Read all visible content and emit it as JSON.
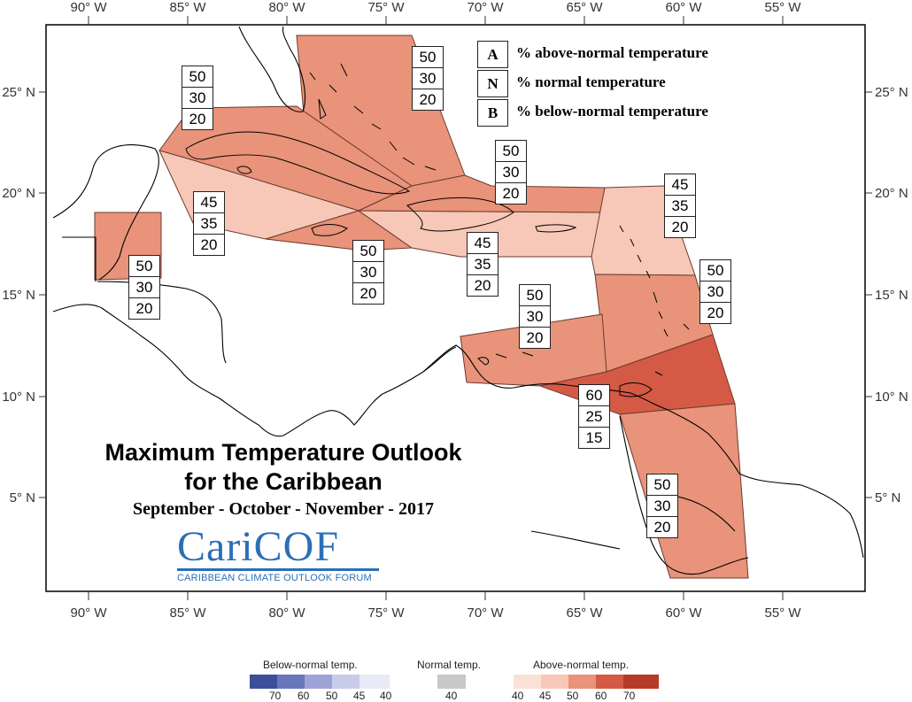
{
  "map": {
    "title_line1": "Maximum Temperature Outlook",
    "title_line2": "for the Caribbean",
    "season": "September - October - November - 2017",
    "logo": {
      "main": "CariCOF",
      "sub": "CARIBBEAN CLIMATE OUTLOOK FORUM",
      "color": "#2b6fb6"
    },
    "lon_ticks": [
      "90° W",
      "85° W",
      "80° W",
      "75° W",
      "70° W",
      "65° W",
      "60° W",
      "55° W"
    ],
    "lat_ticks": [
      "25° N",
      "20° N",
      "15° N",
      "10° N",
      "5° N"
    ],
    "key": [
      {
        "letter": "A",
        "text": "% above-normal temperature"
      },
      {
        "letter": "N",
        "text": "% normal temperature"
      },
      {
        "letter": "B",
        "text": "% below-normal temperature"
      }
    ],
    "regions": [
      {
        "id": "bahamas",
        "above": "50",
        "normal": "30",
        "below": "20",
        "color": "#e8937a"
      },
      {
        "id": "cuba",
        "above": "50",
        "normal": "30",
        "below": "20",
        "color": "#e8937a"
      },
      {
        "id": "belize",
        "above": "50",
        "normal": "30",
        "below": "20",
        "color": "#e8937a"
      },
      {
        "id": "western-caribbean",
        "above": "45",
        "normal": "35",
        "below": "20",
        "color": "#f7c8b8"
      },
      {
        "id": "jamaica",
        "above": "50",
        "normal": "30",
        "below": "20",
        "color": "#e8937a"
      },
      {
        "id": "hispaniola-puerto-rico",
        "above": "45",
        "normal": "35",
        "below": "20",
        "color": "#f7c8b8"
      },
      {
        "id": "north-hispaniola",
        "above": "50",
        "normal": "30",
        "below": "20",
        "color": "#e8937a"
      },
      {
        "id": "leeward-islands",
        "above": "45",
        "normal": "35",
        "below": "20",
        "color": "#f7c8b8"
      },
      {
        "id": "windward-islands",
        "above": "50",
        "normal": "30",
        "below": "20",
        "color": "#e8937a"
      },
      {
        "id": "abc-islands",
        "above": "50",
        "normal": "30",
        "below": "20",
        "color": "#e8937a"
      },
      {
        "id": "trinidad-tobago",
        "above": "60",
        "normal": "25",
        "below": "15",
        "color": "#d45a45"
      },
      {
        "id": "guianas",
        "above": "50",
        "normal": "30",
        "below": "20",
        "color": "#e8937a"
      }
    ],
    "colorbar": {
      "below": {
        "title": "Below-normal temp.",
        "labels": [
          "70",
          "60",
          "50",
          "45",
          "40"
        ],
        "colors": [
          "#3d4f9a",
          "#6a76bb",
          "#9da3d6",
          "#c9cbeb",
          "#e9eaf8"
        ]
      },
      "normal": {
        "title": "Normal temp.",
        "labels": [
          "40"
        ],
        "colors": [
          "#c8c8c8"
        ]
      },
      "above": {
        "title": "Above-normal temp.",
        "labels": [
          "40",
          "45",
          "50",
          "60",
          "70"
        ],
        "colors": [
          "#fbe2d8",
          "#f7c8b8",
          "#e8937a",
          "#d45a45",
          "#b63a28"
        ]
      }
    }
  }
}
